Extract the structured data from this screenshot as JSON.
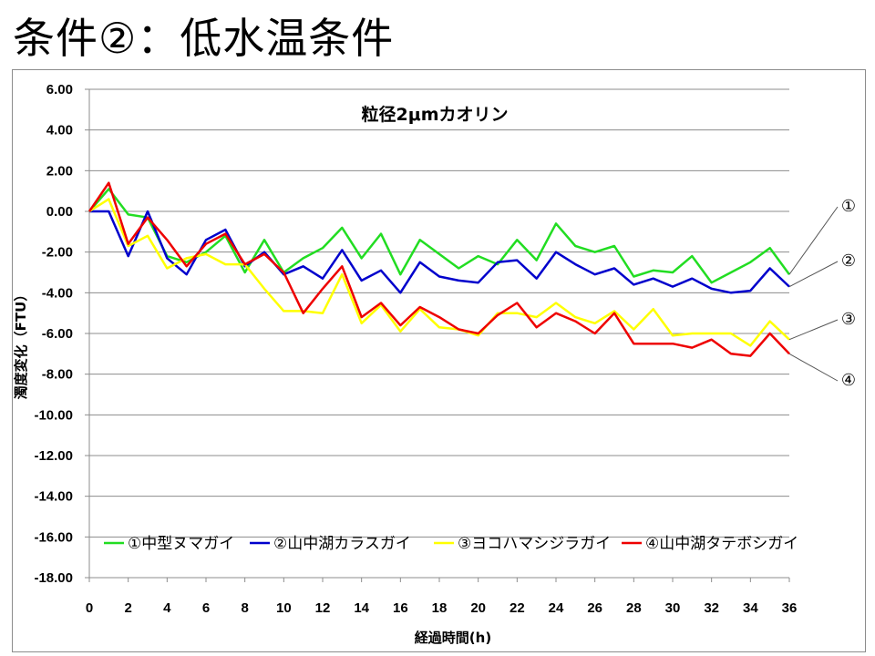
{
  "slide": {
    "title": "条件②：低水温条件"
  },
  "chart_data": {
    "type": "line",
    "title": "粒径2μmカオリン",
    "xlabel": "経過時間(h)",
    "ylabel": "濁度変化（FTU）",
    "xlim": [
      0,
      36
    ],
    "ylim": [
      -18,
      6
    ],
    "x_ticks": [
      "0",
      "2",
      "4",
      "6",
      "8",
      "10",
      "12",
      "14",
      "16",
      "18",
      "20",
      "22",
      "24",
      "26",
      "28",
      "30",
      "32",
      "34",
      "36"
    ],
    "y_ticks": [
      "6.00",
      "4.00",
      "2.00",
      "0.00",
      "-2.00",
      "-4.00",
      "-6.00",
      "-8.00",
      "-10.00",
      "-12.00",
      "-14.00",
      "-16.00",
      "-18.00"
    ],
    "grid": "horizontal",
    "legend_position": "bottom",
    "x": [
      0,
      1,
      2,
      3,
      4,
      5,
      6,
      7,
      8,
      9,
      10,
      11,
      12,
      13,
      14,
      15,
      16,
      17,
      18,
      19,
      20,
      21,
      22,
      23,
      24,
      25,
      26,
      27,
      28,
      29,
      30,
      31,
      32,
      33,
      34,
      35,
      36
    ],
    "series": [
      {
        "name": "①中型ヌマガイ",
        "color": "#22dd22",
        "callout": "①",
        "values": [
          0,
          1.1,
          -0.15,
          -0.3,
          -2.2,
          -2.5,
          -2.0,
          -1.2,
          -3.0,
          -1.4,
          -3.0,
          -2.3,
          -1.8,
          -0.8,
          -2.3,
          -1.1,
          -3.1,
          -1.4,
          -2.1,
          -2.8,
          -2.2,
          -2.6,
          -1.4,
          -2.4,
          -0.6,
          -1.7,
          -2.0,
          -1.7,
          -3.2,
          -2.9,
          -3.0,
          -2.2,
          -3.5,
          -3.0,
          -2.5,
          -1.8,
          -3.1
        ]
      },
      {
        "name": "②山中湖カラスガイ",
        "color": "#0000cc",
        "callout": "②",
        "values": [
          0,
          0,
          -2.2,
          0,
          -2.3,
          -3.1,
          -1.4,
          -0.9,
          -2.7,
          -2.0,
          -3.1,
          -2.7,
          -3.3,
          -1.9,
          -3.4,
          -2.9,
          -4.0,
          -2.5,
          -3.2,
          -3.4,
          -3.5,
          -2.5,
          -2.4,
          -3.3,
          -2.0,
          -2.6,
          -3.1,
          -2.8,
          -3.6,
          -3.3,
          -3.7,
          -3.3,
          -3.8,
          -4.0,
          -3.9,
          -2.8,
          -3.7
        ]
      },
      {
        "name": "③ヨコハマシジラガイ",
        "color": "#ffff00",
        "callout": "③",
        "values": [
          0,
          0.6,
          -1.7,
          -1.2,
          -2.8,
          -2.3,
          -2.1,
          -2.6,
          -2.6,
          -3.8,
          -4.9,
          -4.9,
          -5.0,
          -3.1,
          -5.5,
          -4.6,
          -5.9,
          -4.8,
          -5.7,
          -5.8,
          -6.1,
          -5.0,
          -5.0,
          -5.2,
          -4.5,
          -5.2,
          -5.5,
          -4.9,
          -5.8,
          -4.8,
          -6.1,
          -6.0,
          -6.0,
          -6.0,
          -6.6,
          -5.4,
          -6.3
        ]
      },
      {
        "name": "④山中湖タテボシガイ",
        "color": "#ee0000",
        "callout": "④",
        "values": [
          0,
          1.4,
          -1.6,
          -0.3,
          -1.4,
          -2.7,
          -1.6,
          -1.1,
          -2.6,
          -2.1,
          -3.0,
          -5.0,
          -3.8,
          -2.7,
          -5.2,
          -4.5,
          -5.6,
          -4.7,
          -5.2,
          -5.8,
          -6.0,
          -5.1,
          -4.5,
          -5.7,
          -5.0,
          -5.4,
          -6.0,
          -5.0,
          -6.5,
          -6.5,
          -6.5,
          -6.7,
          -6.3,
          -7.0,
          -7.1,
          -6.0,
          -7.0
        ]
      }
    ]
  }
}
